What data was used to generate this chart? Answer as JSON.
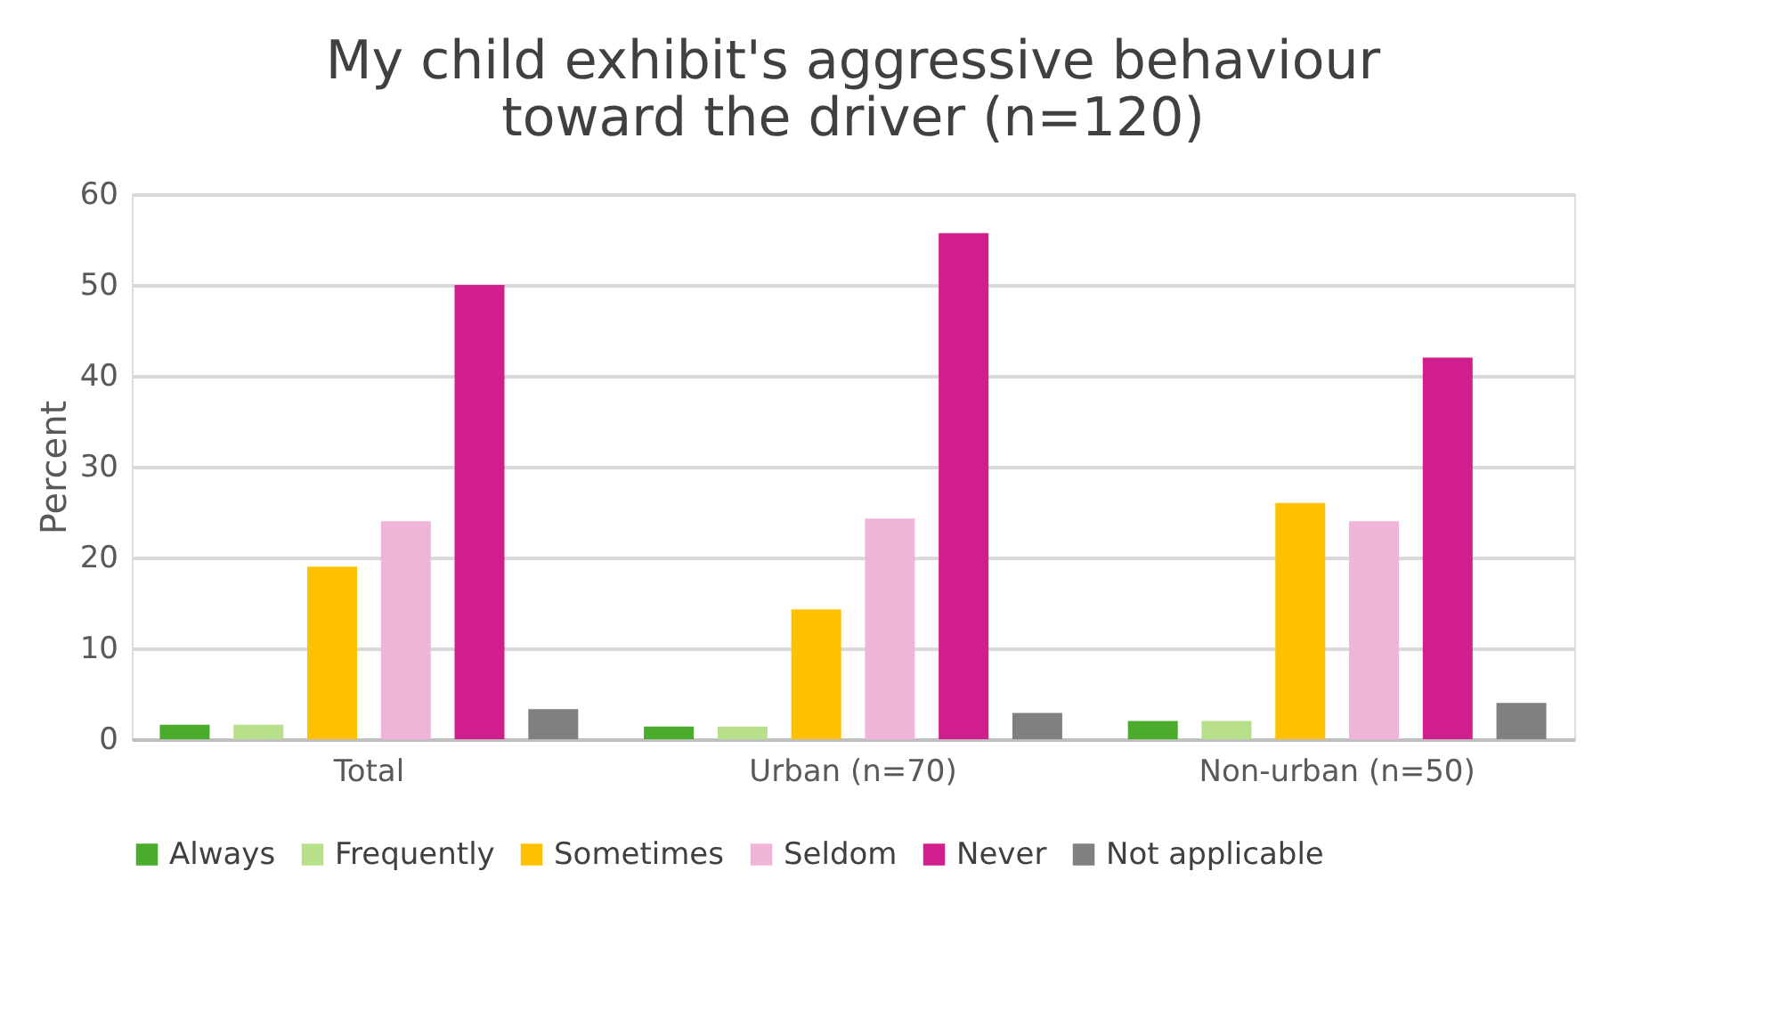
{
  "chart_data": {
    "type": "bar",
    "title": "My child exhibit's aggressive behaviour\ntoward the driver (n=120)",
    "ylabel": "Percent",
    "categories": [
      "Total",
      "Urban (n=70)",
      "Non-urban (n=50)"
    ],
    "series": [
      {
        "name": "Always",
        "color": "#4aac2a",
        "values": [
          1.6,
          1.4,
          2.0
        ]
      },
      {
        "name": "Frequently",
        "color": "#b8e08a",
        "values": [
          1.6,
          1.4,
          2.0
        ]
      },
      {
        "name": "Sometimes",
        "color": "#ffc000",
        "values": [
          19.0,
          14.3,
          26.0
        ]
      },
      {
        "name": "Seldom",
        "color": "#f0b4d8",
        "values": [
          24.0,
          24.3,
          24.0
        ]
      },
      {
        "name": "Never",
        "color": "#d01e8c",
        "values": [
          50.0,
          55.7,
          42.0
        ]
      },
      {
        "name": "Not applicable",
        "color": "#808080",
        "values": [
          3.3,
          2.9,
          4.0
        ]
      }
    ],
    "ylim": [
      0,
      60
    ],
    "yticks": [
      0,
      10,
      20,
      30,
      40,
      50,
      60
    ],
    "grid": "y",
    "legend": "bottom"
  }
}
